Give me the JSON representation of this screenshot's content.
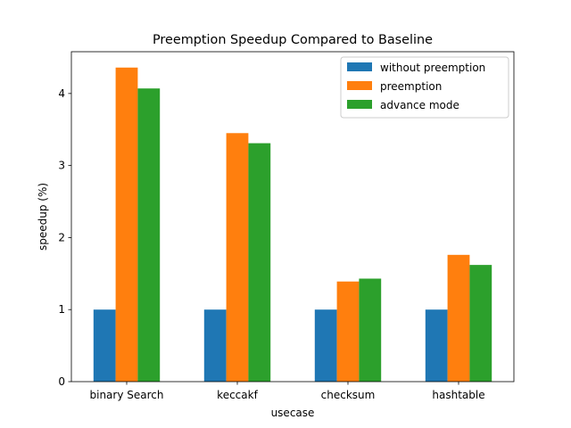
{
  "chart_data": {
    "type": "bar",
    "title": "Preemption Speedup Compared to Baseline",
    "xlabel": "usecase",
    "ylabel": "speedup (%)",
    "categories": [
      "binary Search",
      "keccakf",
      "checksum",
      "hashtable"
    ],
    "series": [
      {
        "name": "without preemption",
        "color": "#1f77b4",
        "values": [
          1.0,
          1.0,
          1.0,
          1.0
        ]
      },
      {
        "name": "preemption",
        "color": "#ff7f0e",
        "values": [
          4.36,
          3.45,
          1.39,
          1.76
        ]
      },
      {
        "name": "advance mode",
        "color": "#2ca02c",
        "values": [
          4.07,
          3.31,
          1.43,
          1.62
        ]
      }
    ],
    "ylim": [
      0,
      4.58
    ],
    "yticks": [
      "0",
      "1",
      "2",
      "3",
      "4"
    ],
    "grid": false,
    "legend_position": "top-right"
  }
}
